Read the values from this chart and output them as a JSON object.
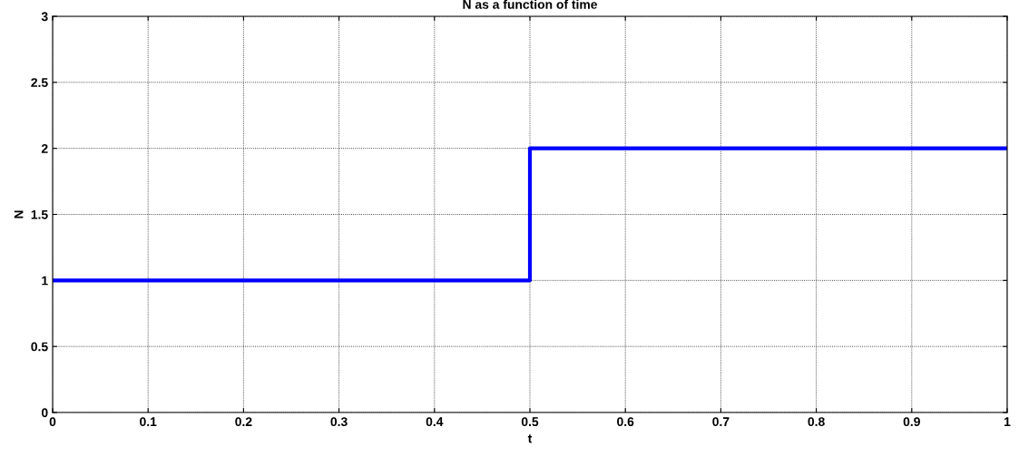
{
  "chart_data": {
    "type": "step",
    "title": "N as a function of time",
    "xlabel": "t",
    "ylabel": "N",
    "x": [
      0,
      0.5,
      1
    ],
    "series": [
      {
        "color": "#0000ff",
        "values": [
          1,
          2,
          2
        ]
      }
    ],
    "xlim": [
      0,
      1
    ],
    "xticks": [
      0,
      0.1,
      0.2,
      0.3,
      0.4,
      0.5,
      0.6,
      0.7,
      0.8,
      0.9,
      1
    ],
    "ylim": [
      0,
      3
    ],
    "yticks": [
      0,
      0.5,
      1,
      1.5,
      2,
      2.5,
      3
    ],
    "grid": true,
    "line_style": "solid",
    "marker": "none",
    "legend": false
  }
}
